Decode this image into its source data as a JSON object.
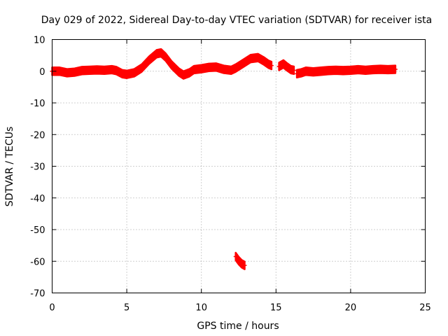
{
  "chart_data": {
    "type": "scatter",
    "title": "Day 029 of 2022, Sidereal Day-to-day VTEC variation (SDTVAR) for receiver ista",
    "xlabel": "GPS time / hours",
    "ylabel": "SDTVAR / TECUs",
    "xlim": [
      0,
      25
    ],
    "ylim": [
      -70,
      10
    ],
    "xticks": [
      0,
      5,
      10,
      15,
      20,
      25
    ],
    "yticks": [
      10,
      0,
      -10,
      -20,
      -30,
      -40,
      -50,
      -60,
      -70
    ],
    "grid": true,
    "series": [
      {
        "name": "SDTVAR",
        "color": "#ff0000",
        "band_halfwidth": 1.2,
        "segments": [
          [
            [
              0,
              0
            ],
            [
              0.5,
              0
            ],
            [
              1,
              -0.5
            ],
            [
              1.5,
              -0.3
            ],
            [
              2,
              0.2
            ],
            [
              2.5,
              0.3
            ],
            [
              3,
              0.4
            ],
            [
              3.5,
              0.3
            ],
            [
              4,
              0.5
            ],
            [
              4.3,
              0.2
            ],
            [
              4.7,
              -0.8
            ],
            [
              5,
              -1
            ],
            [
              5.5,
              -0.5
            ],
            [
              6,
              1
            ],
            [
              6.5,
              3.5
            ],
            [
              7,
              5.5
            ],
            [
              7.3,
              5.8
            ],
            [
              7.6,
              4.5
            ],
            [
              8,
              2
            ],
            [
              8.5,
              -0.3
            ],
            [
              8.8,
              -1.2
            ],
            [
              9.2,
              -0.5
            ],
            [
              9.5,
              0.5
            ],
            [
              10,
              0.8
            ],
            [
              10.5,
              1.2
            ],
            [
              11,
              1.3
            ],
            [
              11.5,
              0.6
            ],
            [
              12,
              0.3
            ],
            [
              12.3,
              1
            ],
            [
              12.8,
              2.5
            ],
            [
              13.3,
              4
            ],
            [
              13.8,
              4.3
            ],
            [
              14.2,
              3.2
            ],
            [
              14.5,
              2.2
            ],
            [
              14.7,
              1.8
            ]
          ],
          [
            [
              15.2,
              1.5
            ],
            [
              15.5,
              2.3
            ],
            [
              15.7,
              1.5
            ],
            [
              16,
              0.5
            ],
            [
              16.2,
              0.3
            ]
          ],
          [
            [
              16.4,
              -0.8
            ],
            [
              16.7,
              -0.5
            ],
            [
              17,
              0
            ],
            [
              17.5,
              -0.2
            ],
            [
              18,
              0
            ],
            [
              18.5,
              0.2
            ],
            [
              19,
              0.3
            ],
            [
              19.5,
              0.2
            ],
            [
              20,
              0.3
            ],
            [
              20.5,
              0.5
            ],
            [
              21,
              0.3
            ],
            [
              21.5,
              0.5
            ],
            [
              22,
              0.6
            ],
            [
              22.5,
              0.5
            ],
            [
              23,
              0.6
            ]
          ],
          [
            [
              12.3,
              -58.5
            ],
            [
              12.5,
              -59.8
            ],
            [
              12.7,
              -60.8
            ],
            [
              12.9,
              -61.3
            ]
          ]
        ]
      }
    ]
  }
}
